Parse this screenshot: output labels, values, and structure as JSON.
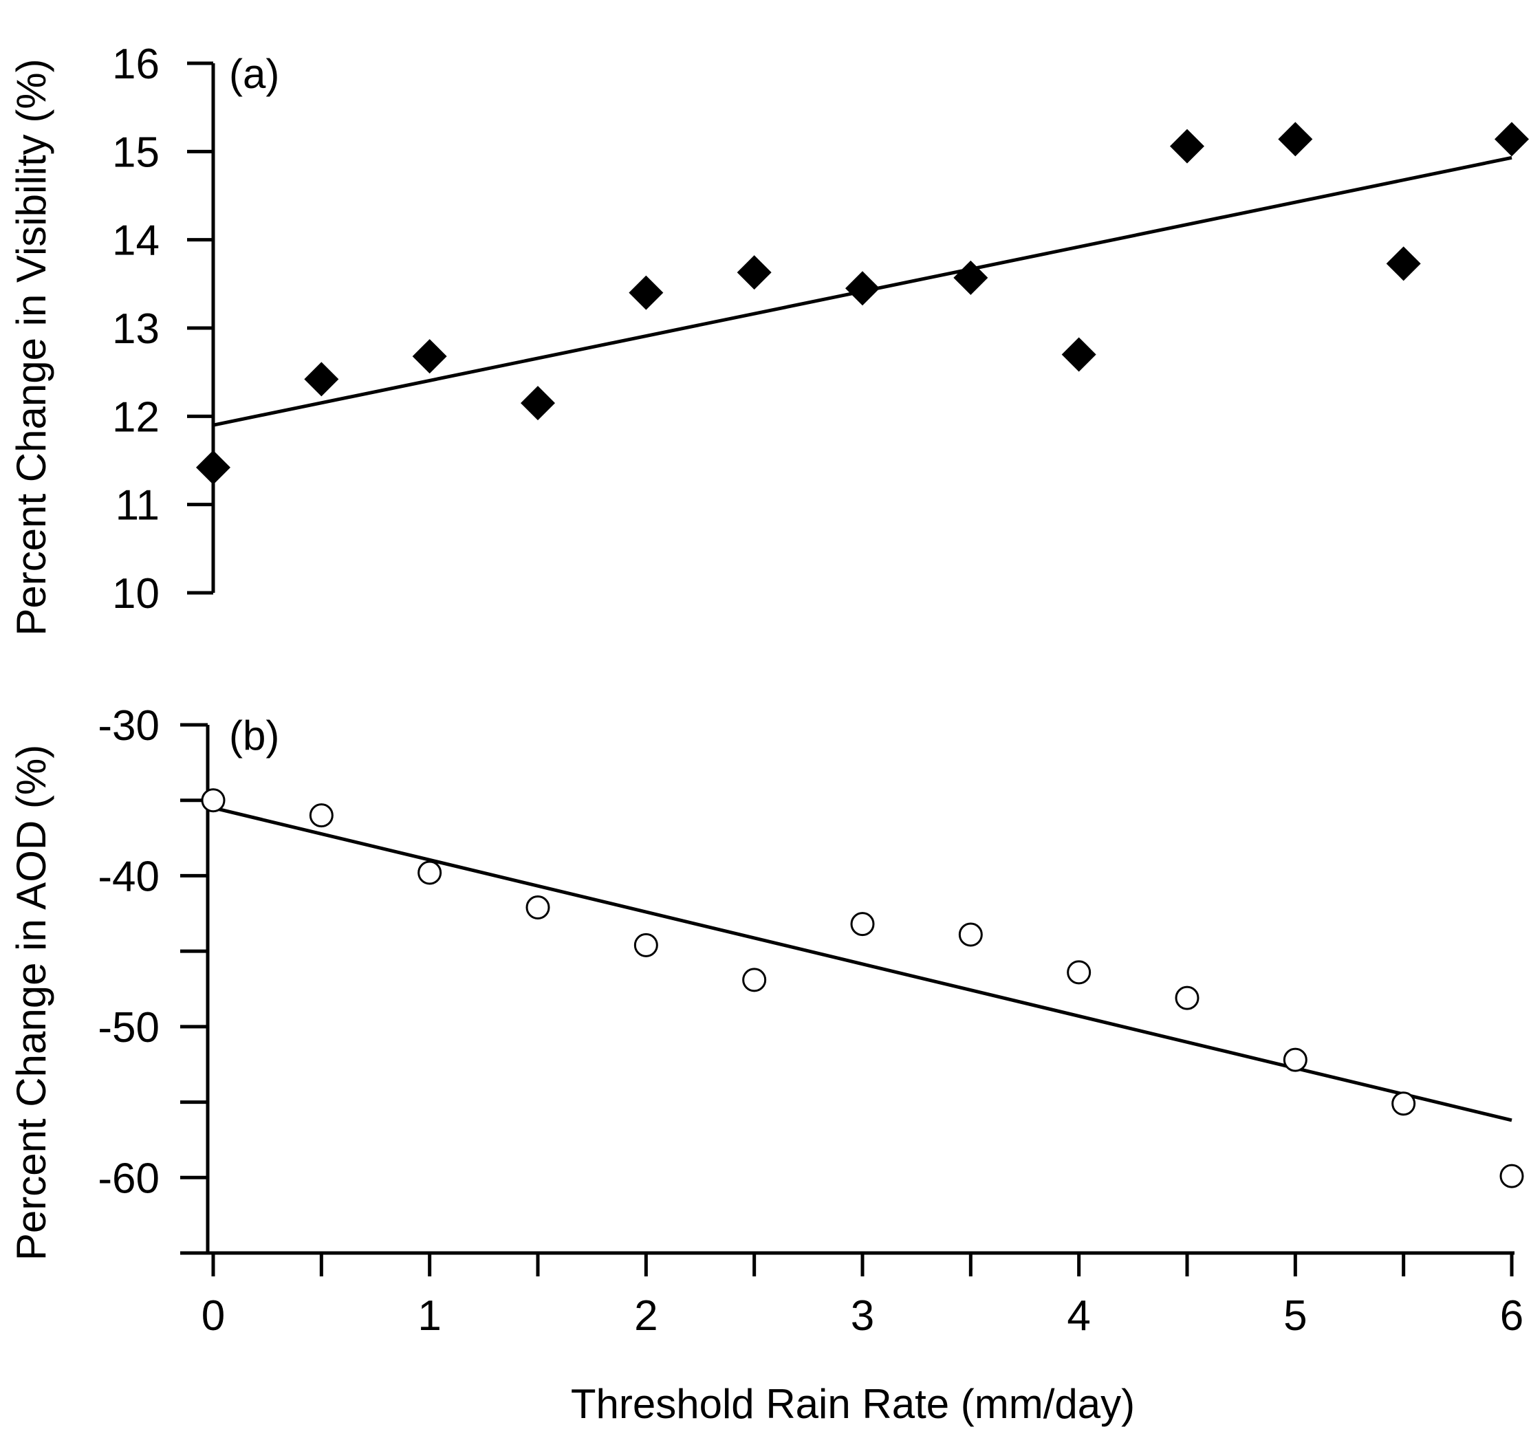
{
  "chart_data": [
    {
      "type": "scatter",
      "panel_label": "(a)",
      "ylabel": "Percent Change in Visibility (%)",
      "xlim": [
        0,
        6
      ],
      "ylim": [
        10,
        16
      ],
      "yticks": [
        10,
        11,
        12,
        13,
        14,
        15,
        16
      ],
      "marker": "filled-diamond",
      "grid": false,
      "series": [
        {
          "x": [
            0,
            0.5,
            1,
            1.5,
            2,
            2.5,
            3,
            3.5,
            4,
            4.5,
            5,
            5.5,
            6
          ],
          "y": [
            11.42,
            12.42,
            12.68,
            12.15,
            13.4,
            13.63,
            13.45,
            13.57,
            12.7,
            15.06,
            15.14,
            13.73,
            15.14
          ]
        }
      ],
      "fit_line": {
        "x": [
          0,
          6
        ],
        "y": [
          11.9,
          14.93
        ]
      }
    },
    {
      "type": "scatter",
      "panel_label": "(b)",
      "ylabel": "Percent Change in AOD (%)",
      "xlabel": "Threshold Rain Rate (mm/day)",
      "xlim": [
        0,
        6
      ],
      "ylim": [
        -65,
        -30
      ],
      "yticks": [
        -30,
        -35,
        -40,
        -45,
        -50,
        -55,
        -60,
        -65
      ],
      "ytick_labels": [
        "-30",
        "",
        "-40",
        "",
        "-50",
        "",
        "-60",
        ""
      ],
      "xticks": [
        0,
        0.5,
        1,
        1.5,
        2,
        2.5,
        3,
        3.5,
        4,
        4.5,
        5,
        5.5,
        6
      ],
      "xtick_labels": [
        "0",
        "",
        "1",
        "",
        "2",
        "",
        "3",
        "",
        "4",
        "",
        "5",
        "",
        "6"
      ],
      "marker": "open-circle",
      "grid": false,
      "series": [
        {
          "x": [
            0,
            0.5,
            1,
            1.5,
            2,
            2.5,
            3,
            3.5,
            4,
            4.5,
            5,
            5.5,
            6
          ],
          "y": [
            -35.0,
            -36.0,
            -39.8,
            -42.1,
            -44.6,
            -46.9,
            -43.2,
            -43.9,
            -46.4,
            -48.1,
            -52.2,
            -55.1,
            -59.9
          ]
        }
      ],
      "fit_line": {
        "x": [
          0,
          6
        ],
        "y": [
          -35.5,
          -56.2
        ]
      }
    }
  ]
}
